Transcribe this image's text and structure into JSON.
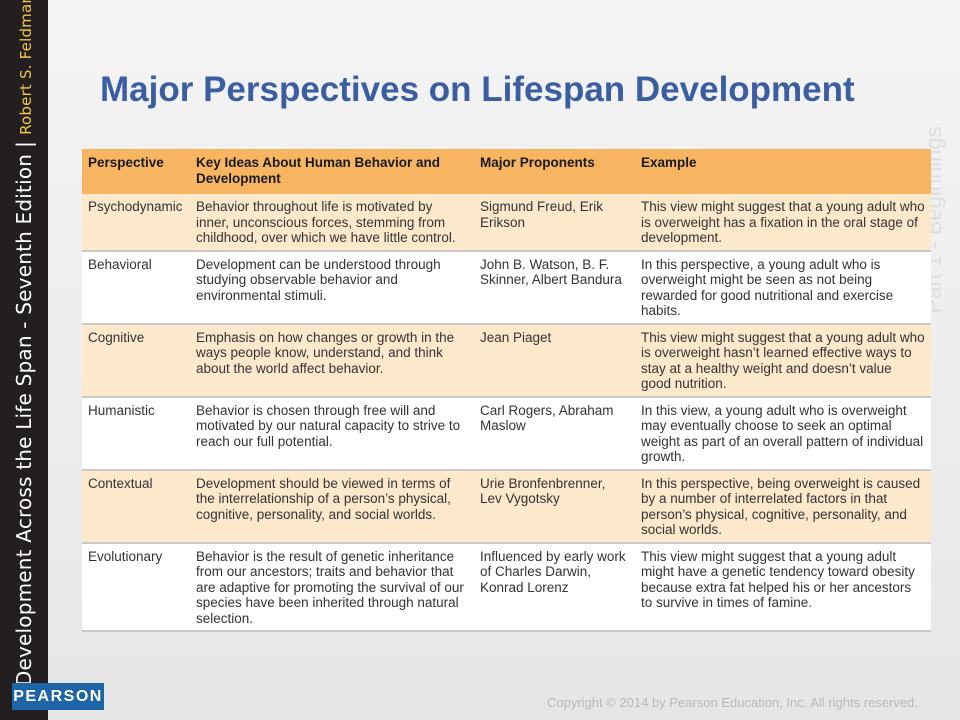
{
  "sidebar": {
    "title": "Development Across the Life Span - Seventh Edition",
    "separator": "|",
    "author": "Robert S. Feldman"
  },
  "background_text": "Part 1 - Beginnings",
  "title": "Major Perspectives on Lifespan Development",
  "table": {
    "headers": [
      "Perspective",
      "Key Ideas About Human Behavior and Development",
      "Major Proponents",
      "Example"
    ],
    "rows": [
      [
        "Psychodynamic",
        "Behavior throughout life is motivated by inner, unconscious forces, stemming from childhood, over which we have little control.",
        "Sigmund Freud, Erik Erikson",
        "This view might suggest that a young adult who is overweight has a fixation in the oral stage of development."
      ],
      [
        "Behavioral",
        "Development can be understood through studying observable behavior and environmental stimuli.",
        "John B. Watson, B. F. Skinner, Albert Bandura",
        "In this perspective, a young adult who is overweight might be seen as not being rewarded for good nutritional and exercise habits."
      ],
      [
        "Cognitive",
        "Emphasis on how changes or growth in the ways people know, understand, and think about the world affect behavior.",
        "Jean Piaget",
        "This view might suggest that a young adult who is overweight hasn’t learned effective ways to stay at a healthy weight and doesn’t value good nutrition."
      ],
      [
        "Humanistic",
        "Behavior is chosen through free will and motivated by our natural capacity to strive to reach our full potential.",
        "Carl Rogers, Abraham Maslow",
        "In this view, a young adult who is overweight may eventually choose to seek an optimal weight as part of an overall pattern of individual growth."
      ],
      [
        "Contextual",
        "Development should be viewed in terms of the interrelationship of a person’s physical, cognitive, personality, and social worlds.",
        "Urie Bronfenbrenner, Lev Vygotsky",
        "In this perspective, being overweight is caused by a number of interrelated factors in that person’s physical, cognitive, personality, and social worlds."
      ],
      [
        "Evolutionary",
        "Behavior is the result of genetic inheritance from our ancestors; traits and behavior that are adaptive for promoting the survival of our species have been inherited through natural selection.",
        "Influenced by early work of Charles Darwin, Konrad Lorenz",
        "This view might suggest that a young adult might have a genetic tendency toward obesity because extra fat helped his or her ancestors to survive in times of famine."
      ]
    ]
  },
  "logo": "PEARSON",
  "copyright": "Copyright © 2014 by Pearson Education, Inc. All rights reserved.",
  "colors": {
    "title": "#3b5ea3",
    "header_row": "#f7b562",
    "alt_row": "#fce9cc",
    "sidebar": "#231f20",
    "logo_bg": "#1e65a7"
  }
}
